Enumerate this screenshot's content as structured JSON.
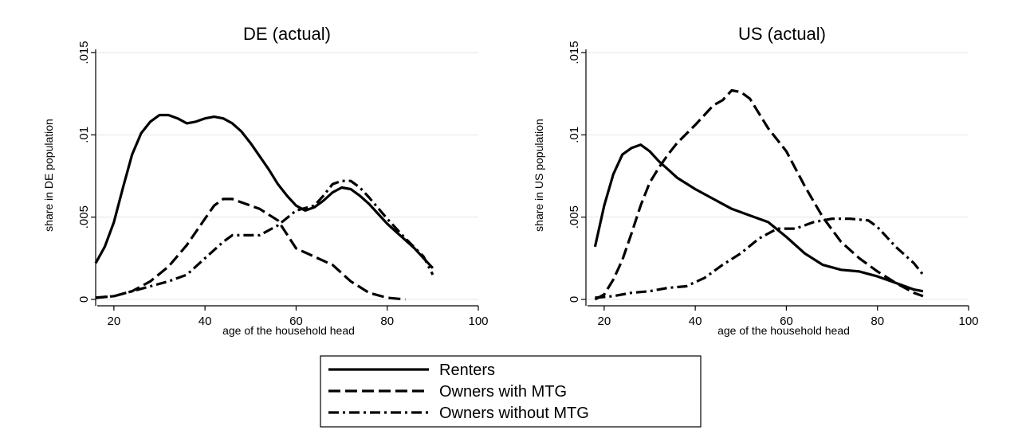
{
  "chart_data": [
    {
      "type": "line",
      "title": "DE (actual)",
      "xlabel": "age of the household head",
      "ylabel": "share in DE population",
      "xlim": [
        16,
        100
      ],
      "ylim": [
        0,
        0.015
      ],
      "xticks": [
        20,
        40,
        60,
        80,
        100
      ],
      "xtick_labels": [
        "20",
        "40",
        "60",
        "80",
        "100"
      ],
      "yticks": [
        0,
        0.005,
        0.01,
        0.015
      ],
      "ytick_labels": [
        "0",
        ".005",
        ".01",
        ".015"
      ],
      "grid": true,
      "series": [
        {
          "name": "Renters",
          "style": "solid",
          "x": [
            16,
            18,
            20,
            22,
            24,
            26,
            28,
            30,
            32,
            34,
            36,
            38,
            40,
            42,
            44,
            46,
            48,
            50,
            52,
            54,
            56,
            58,
            60,
            62,
            64,
            66,
            68,
            70,
            72,
            74,
            76,
            78,
            80,
            82,
            84,
            86,
            88,
            90
          ],
          "y": [
            0.0022,
            0.0032,
            0.0047,
            0.0068,
            0.0088,
            0.0101,
            0.0108,
            0.0112,
            0.0112,
            0.011,
            0.0107,
            0.0108,
            0.011,
            0.0111,
            0.011,
            0.0107,
            0.0102,
            0.0095,
            0.0087,
            0.0079,
            0.007,
            0.0063,
            0.0057,
            0.0054,
            0.0056,
            0.006,
            0.0065,
            0.0068,
            0.0067,
            0.0063,
            0.0058,
            0.0052,
            0.0046,
            0.0041,
            0.0036,
            0.0031,
            0.0025,
            0.0019
          ]
        },
        {
          "name": "Owners with MTG",
          "style": "dashed",
          "x": [
            16,
            20,
            24,
            28,
            32,
            36,
            40,
            42,
            44,
            46,
            48,
            52,
            56,
            60,
            64,
            68,
            72,
            76,
            80,
            84
          ],
          "y": [
            0.0001,
            0.0002,
            0.0005,
            0.0011,
            0.002,
            0.0033,
            0.0049,
            0.0057,
            0.0061,
            0.0061,
            0.0059,
            0.0055,
            0.0048,
            0.0031,
            0.0026,
            0.0021,
            0.0011,
            0.0004,
            0.0001,
            0.0
          ]
        },
        {
          "name": "Owners without MTG",
          "style": "dashdot",
          "x": [
            16,
            20,
            24,
            28,
            32,
            36,
            40,
            44,
            46,
            48,
            52,
            56,
            60,
            64,
            66,
            68,
            70,
            72,
            74,
            76,
            80,
            84,
            88,
            90
          ],
          "y": [
            0.0001,
            0.0002,
            0.0005,
            0.0008,
            0.0011,
            0.0015,
            0.0025,
            0.0035,
            0.0039,
            0.0039,
            0.0039,
            0.0045,
            0.0054,
            0.0057,
            0.0063,
            0.007,
            0.0072,
            0.0072,
            0.0068,
            0.0062,
            0.0049,
            0.0037,
            0.0026,
            0.0015
          ]
        }
      ]
    },
    {
      "type": "line",
      "title": "US (actual)",
      "xlabel": "age of the household head",
      "ylabel": "share in US population",
      "xlim": [
        16,
        100
      ],
      "ylim": [
        0,
        0.015
      ],
      "xticks": [
        20,
        40,
        60,
        80,
        100
      ],
      "xtick_labels": [
        "20",
        "40",
        "60",
        "80",
        "100"
      ],
      "yticks": [
        0,
        0.005,
        0.01,
        0.015
      ],
      "ytick_labels": [
        "0",
        ".005",
        ".01",
        ".015"
      ],
      "grid": true,
      "series": [
        {
          "name": "Renters",
          "style": "solid",
          "x": [
            18,
            20,
            22,
            24,
            26,
            28,
            30,
            32,
            34,
            36,
            40,
            44,
            48,
            52,
            56,
            60,
            64,
            68,
            72,
            76,
            80,
            84,
            88,
            90
          ],
          "y": [
            0.0032,
            0.0057,
            0.0076,
            0.0088,
            0.0092,
            0.0094,
            0.009,
            0.0084,
            0.0079,
            0.0074,
            0.0067,
            0.0061,
            0.0055,
            0.0051,
            0.0047,
            0.0038,
            0.0028,
            0.0021,
            0.0018,
            0.0017,
            0.0014,
            0.001,
            0.0006,
            0.0005
          ]
        },
        {
          "name": "Owners with MTG",
          "style": "dashed",
          "x": [
            18,
            20,
            22,
            24,
            26,
            28,
            30,
            32,
            34,
            36,
            40,
            44,
            46,
            48,
            50,
            52,
            54,
            56,
            60,
            64,
            68,
            72,
            76,
            80,
            84,
            88,
            90
          ],
          "y": [
            0.0,
            0.0003,
            0.0012,
            0.0024,
            0.004,
            0.0057,
            0.0071,
            0.008,
            0.0088,
            0.0095,
            0.0106,
            0.0118,
            0.0121,
            0.0127,
            0.0126,
            0.0122,
            0.0113,
            0.0104,
            0.009,
            0.0069,
            0.005,
            0.0035,
            0.0025,
            0.0017,
            0.001,
            0.0004,
            0.0002
          ]
        },
        {
          "name": "Owners without MTG",
          "style": "dashdot",
          "x": [
            18,
            22,
            26,
            30,
            34,
            38,
            42,
            46,
            50,
            54,
            58,
            62,
            66,
            70,
            74,
            78,
            80,
            84,
            88,
            90
          ],
          "y": [
            0.0001,
            0.0002,
            0.0004,
            0.0005,
            0.0007,
            0.0008,
            0.0013,
            0.0021,
            0.0028,
            0.0037,
            0.0043,
            0.0043,
            0.0047,
            0.0049,
            0.0049,
            0.0048,
            0.0044,
            0.0032,
            0.0022,
            0.0015
          ]
        }
      ]
    }
  ],
  "legend": {
    "placement": "bottom-center",
    "items": [
      {
        "label": "Renters",
        "style": "solid"
      },
      {
        "label": "Owners with MTG",
        "style": "dashed"
      },
      {
        "label": "Owners without MTG",
        "style": "dashdot"
      }
    ]
  }
}
